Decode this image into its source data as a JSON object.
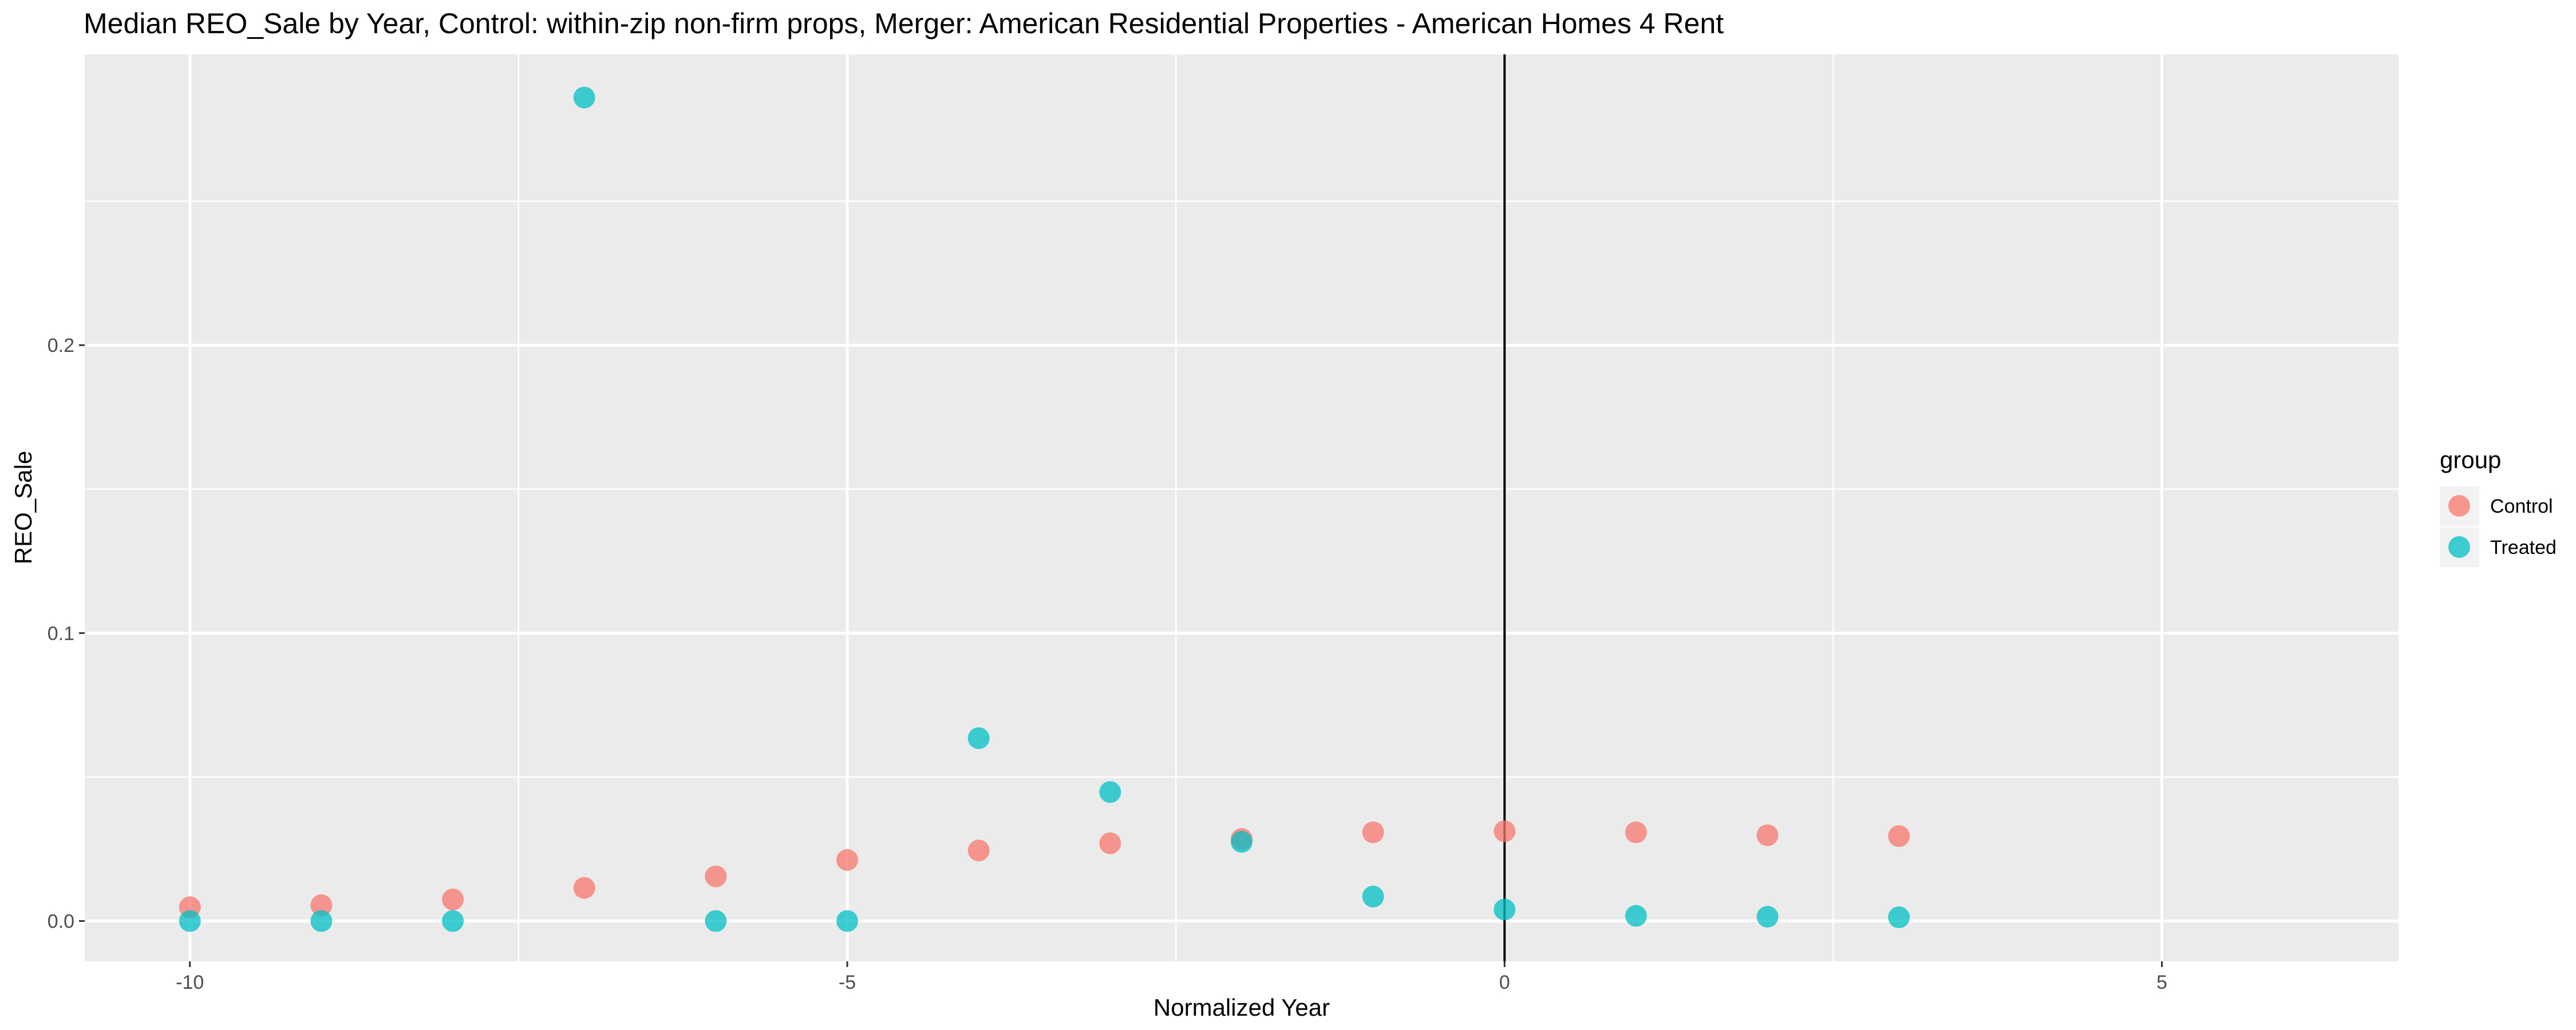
{
  "chart_data": {
    "type": "scatter",
    "title": "Median REO_Sale by Year, Control: within-zip non-firm props, Merger: American Residential Properties - American Homes 4 Rent",
    "xlabel": "Normalized Year",
    "ylabel": "REO_Sale",
    "xlim": [
      -10.8,
      6.8
    ],
    "ylim": [
      -0.014,
      0.301
    ],
    "x_ticks": [
      -10,
      -5,
      0,
      5
    ],
    "x_tick_labels": [
      "-10",
      "-5",
      "0",
      "5"
    ],
    "y_ticks": [
      0.0,
      0.1,
      0.2
    ],
    "y_tick_labels": [
      "0.0",
      "0.1",
      "0.2"
    ],
    "x_minor_ticks": [
      -7.5,
      -2.5,
      2.5
    ],
    "y_minor_ticks": [
      0.05,
      0.15,
      0.25
    ],
    "grid": true,
    "vline_x": 0,
    "legend": {
      "title": "group",
      "position": "right",
      "entries": [
        "Control",
        "Treated"
      ]
    },
    "series": [
      {
        "name": "Control",
        "color": "#F8766D",
        "points": [
          {
            "x": -10,
            "y": 0.0048
          },
          {
            "x": -9,
            "y": 0.0055
          },
          {
            "x": -8,
            "y": 0.0075
          },
          {
            "x": -7,
            "y": 0.0115
          },
          {
            "x": -6,
            "y": 0.0155
          },
          {
            "x": -5,
            "y": 0.0212
          },
          {
            "x": -4,
            "y": 0.0245
          },
          {
            "x": -3,
            "y": 0.027
          },
          {
            "x": -2,
            "y": 0.0285
          },
          {
            "x": -1,
            "y": 0.0308
          },
          {
            "x": 0,
            "y": 0.0312
          },
          {
            "x": 1,
            "y": 0.0308
          },
          {
            "x": 2,
            "y": 0.0298
          },
          {
            "x": 3,
            "y": 0.0295
          }
        ]
      },
      {
        "name": "Treated",
        "color": "#00BFC4",
        "points": [
          {
            "x": -10,
            "y": 0.0
          },
          {
            "x": -9,
            "y": 0.0
          },
          {
            "x": -8,
            "y": 0.0
          },
          {
            "x": -7,
            "y": 0.286
          },
          {
            "x": -6,
            "y": 0.0
          },
          {
            "x": -5,
            "y": 0.0
          },
          {
            "x": -4,
            "y": 0.0635
          },
          {
            "x": -3,
            "y": 0.0448
          },
          {
            "x": -2,
            "y": 0.0275
          },
          {
            "x": -1,
            "y": 0.0085
          },
          {
            "x": 0,
            "y": 0.004
          },
          {
            "x": 1,
            "y": 0.0018
          },
          {
            "x": 2,
            "y": 0.0015
          },
          {
            "x": 3,
            "y": 0.0013
          }
        ]
      }
    ]
  }
}
